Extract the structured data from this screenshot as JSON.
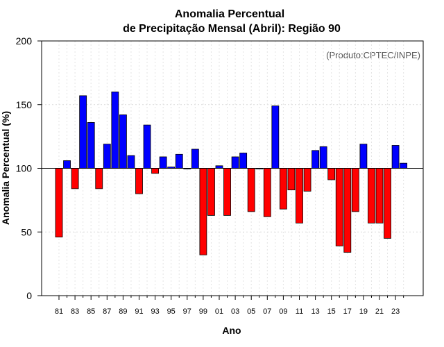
{
  "chart_data": {
    "type": "bar",
    "title_line1": "Anomalia Percentual",
    "title_line2": "de Precipitação Mensal (Abril): Região 90",
    "xlabel": "Ano",
    "ylabel": "Anomalia Percentual (%)",
    "credit": "(Produto:CPTEC/INPE)",
    "baseline": 100,
    "ylim": [
      0,
      200
    ],
    "yticks": [
      "0",
      "50",
      "100",
      "150",
      "200"
    ],
    "xtick_labels": [
      "81",
      "83",
      "85",
      "87",
      "89",
      "91",
      "93",
      "95",
      "97",
      "99",
      "01",
      "03",
      "05",
      "07",
      "09",
      "11",
      "13",
      "15",
      "17",
      "19",
      "21",
      "23"
    ],
    "colors": {
      "above": "#0000ff",
      "below": "#ff0000",
      "baseline": "#000000"
    },
    "categories": [
      "1981",
      "1982",
      "1983",
      "1984",
      "1985",
      "1986",
      "1987",
      "1988",
      "1989",
      "1990",
      "1991",
      "1992",
      "1993",
      "1994",
      "1995",
      "1996",
      "1997",
      "1998",
      "1999",
      "2000",
      "2001",
      "2002",
      "2003",
      "2004",
      "2005",
      "2006",
      "2007",
      "2008",
      "2009",
      "2010",
      "2011",
      "2012",
      "2013",
      "2014",
      "2015",
      "2016",
      "2017",
      "2018",
      "2019",
      "2020",
      "2021",
      "2022",
      "2023",
      "2024"
    ],
    "values": [
      46,
      106,
      84,
      157,
      136,
      84,
      119,
      160,
      142,
      110,
      80,
      134,
      96,
      109,
      101,
      111,
      100,
      115,
      32,
      63,
      102,
      63,
      109,
      112,
      66,
      100,
      62,
      149,
      68,
      83,
      57,
      82,
      114,
      117,
      91,
      39,
      34,
      66,
      119,
      57,
      57,
      45,
      118,
      104
    ]
  }
}
